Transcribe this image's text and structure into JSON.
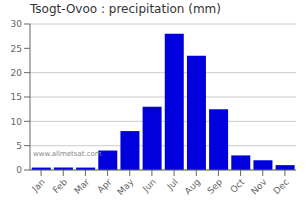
{
  "chart_data": {
    "type": "bar",
    "title": "Tsogt-Ovoo : precipitation (mm)",
    "categories": [
      "Jan",
      "Feb",
      "Mar",
      "Apr",
      "May",
      "Jun",
      "Jul",
      "Aug",
      "Sep",
      "Oct",
      "Nov",
      "Dec"
    ],
    "values": [
      0.5,
      0.5,
      0.5,
      4.0,
      8.0,
      13.0,
      28.0,
      23.5,
      12.5,
      3.0,
      2.0,
      1.0
    ],
    "color": "#0000dd",
    "ylim": [
      0,
      30
    ],
    "yticks": [
      0,
      5,
      10,
      15,
      20,
      25,
      30
    ],
    "grid": true,
    "annotations": [
      "www.allmetsat.com"
    ]
  }
}
